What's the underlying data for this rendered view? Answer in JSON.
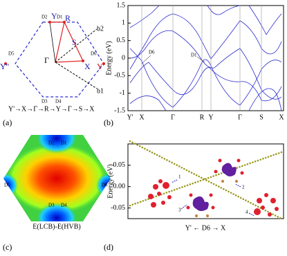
{
  "panel_a": {
    "labels": {
      "Y": "Y",
      "R": "R",
      "D2": "D2",
      "D1": "D1",
      "b2": "b2",
      "S": "S",
      "D5": "D5",
      "Y2": "Y''",
      "Gamma": "Γ",
      "D6": "D6",
      "X": "X",
      "Y1": "Y'",
      "D3": "D3",
      "D4": "D4",
      "b1": "b1"
    },
    "path": "Y'→X→Γ→R→Y→Γ→S→X",
    "tag": "(a)"
  },
  "panel_b": {
    "ylabel": "Energy (eV)",
    "ylim": [
      -1.5,
      1.5
    ],
    "yticks": [
      1.5,
      1,
      0.5,
      0,
      -0.5,
      -1,
      -1.5
    ],
    "xlabels": [
      "Y'",
      "X",
      "Γ",
      "R",
      "Y",
      "Γ",
      "S",
      "X"
    ],
    "annotations": [
      "D6",
      "D1"
    ],
    "tag": "(b)"
  },
  "panel_c": {
    "labels": [
      "D2",
      "D1",
      "D5",
      "D6",
      "D3",
      "D4"
    ],
    "caption": "E(LCB)-E(HVB)",
    "tag": "(c)"
  },
  "panel_d": {
    "ylabel": "Energy (eV)",
    "ylim": [
      -0.075,
      0.1
    ],
    "yticks": [
      {
        "value": 0.05,
        "label": "0.05"
      },
      {
        "value": 0,
        "label": "0.00"
      },
      {
        "value": -0.05,
        "label": "-0.05"
      }
    ],
    "xlabel": "Y'  ←  D6  →  X",
    "markers": [
      "1",
      "2",
      "3",
      "4"
    ],
    "tag": "(d)"
  }
}
